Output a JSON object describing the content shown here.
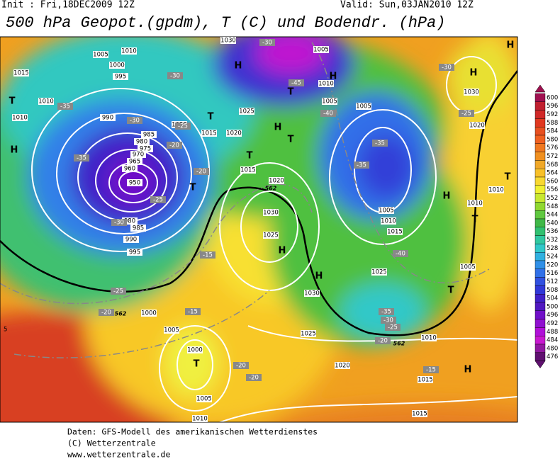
{
  "header": {
    "init": "Init : Fri,18DEC2009 12Z",
    "valid": "Valid: Sun,03JAN2010 12Z",
    "title": "500 hPa Geopot.(gpdm), T (C) und Bodendr. (hPa)"
  },
  "map": {
    "pressure_labels": [
      "1015",
      "1005",
      "1010",
      "1000",
      "995",
      "1010",
      "1010",
      "990",
      "985",
      "980",
      "975",
      "970",
      "965",
      "960",
      "950",
      "980",
      "985",
      "990",
      "995",
      "1000",
      "1005",
      "1000",
      "1005",
      "1010",
      "1020",
      "1015",
      "1020",
      "1015",
      "1020",
      "1025",
      "1030",
      "1005",
      "1010",
      "1005",
      "1005",
      "1030",
      "1020",
      "1010",
      "1010",
      "1030",
      "1025",
      "1005",
      "1010",
      "1015",
      "1025",
      "1005",
      "1030",
      "1025",
      "1020",
      "1010",
      "1015",
      "1015"
    ],
    "temperature_labels": [
      "-30",
      "-35",
      "-30",
      "-25",
      "-20",
      "-35",
      "-20",
      "-25",
      "-30",
      "-15",
      "-25",
      "-20",
      "-15",
      "-20",
      "-20",
      "-30",
      "-45",
      "-40",
      "-35",
      "-35",
      "-40",
      "-30",
      "-25",
      "-35",
      "-30",
      "-25",
      "-20",
      "-15"
    ],
    "center_labels": [
      "T",
      "H",
      "H",
      "T",
      "H",
      "T",
      "H",
      "T",
      "T",
      "T",
      "H",
      "H",
      "T",
      "H",
      "T",
      "T",
      "H",
      "H",
      "T",
      "H"
    ],
    "contour_labels": [
      "562",
      "562",
      "562"
    ],
    "edge_label": "5"
  },
  "colorbar": {
    "values": [
      600,
      596,
      592,
      588,
      584,
      580,
      576,
      572,
      568,
      564,
      560,
      556,
      552,
      548,
      544,
      540,
      536,
      532,
      528,
      524,
      520,
      516,
      512,
      508,
      504,
      500,
      496,
      492,
      488,
      484,
      480,
      476
    ],
    "colors": [
      "#a01050",
      "#c02030",
      "#d02828",
      "#e03820",
      "#e85020",
      "#f06020",
      "#f07820",
      "#f09020",
      "#f0a828",
      "#f8c028",
      "#f8d830",
      "#f0f030",
      "#c8e830",
      "#90d830",
      "#60c840",
      "#40b848",
      "#30c070",
      "#30c8a0",
      "#30c8c8",
      "#30b0e0",
      "#3090e8",
      "#3070e8",
      "#3050e0",
      "#3038d8",
      "#4020c8",
      "#5018c0",
      "#7010c8",
      "#9010d0",
      "#b010d8",
      "#c818d0",
      "#9018a0",
      "#601070"
    ]
  },
  "footer": {
    "line1": "Daten: GFS-Modell des amerikanischen Wetterdienstes",
    "line2": "(C) Wetterzentrale",
    "line3": "www.wetterzentrale.de"
  }
}
